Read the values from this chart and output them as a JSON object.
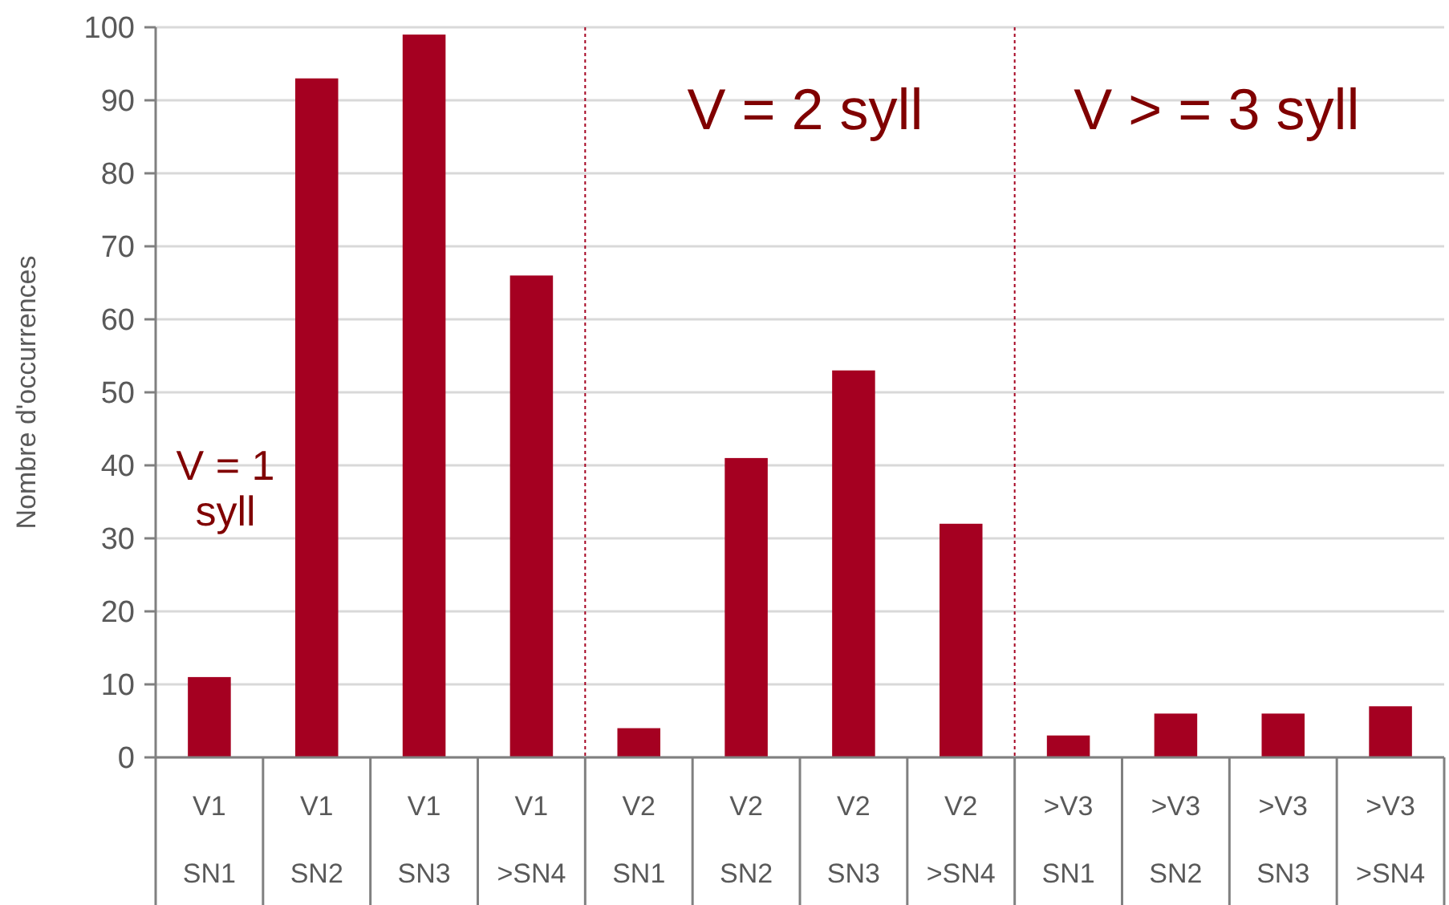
{
  "chart_data": {
    "type": "bar",
    "ylabel": "Nombre d'occurrences",
    "categories": [
      "V1\nSN1",
      "V1\nSN2",
      "V1\nSN3",
      "V1\n>SN4",
      "V2\nSN1",
      "V2\nSN2",
      "V2\nSN3",
      "V2\n>SN4",
      ">V3\nSN1",
      ">V3\nSN2",
      ">V3\nSN3",
      ">V3\n>SN4"
    ],
    "values": [
      11,
      93,
      99,
      66,
      4,
      41,
      53,
      32,
      3,
      6,
      6,
      7
    ],
    "color": "#a50021",
    "ylim": [
      0,
      100
    ],
    "yticks": [
      0,
      10,
      20,
      30,
      40,
      50,
      60,
      70,
      80,
      90,
      100
    ],
    "grid": "y",
    "annotations": [
      "V = 1 syll",
      "V = 2 syll",
      "V > = 3 syll"
    ]
  }
}
